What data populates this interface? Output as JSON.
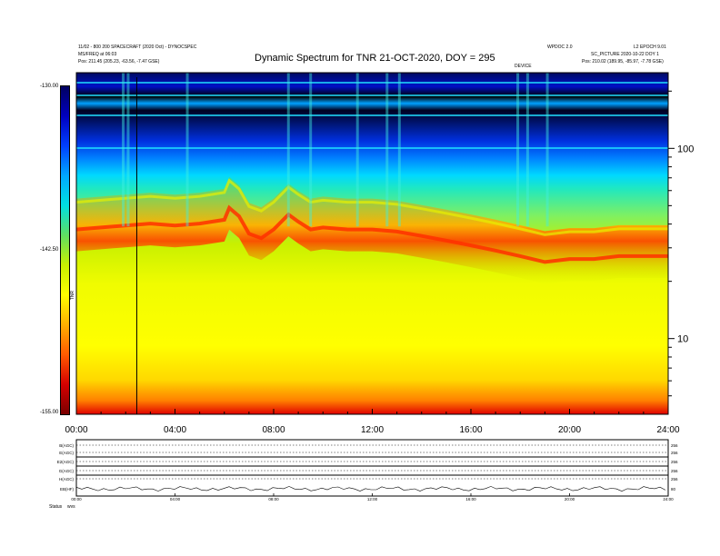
{
  "header": {
    "left_line1": "11/02 - 800 200 SPACECRAFT (2020 Oct) - DYNOCSPEC",
    "left_line2": "MS/FREQ at 06:03",
    "left_line3": "Pos:   211.45 (205.23, -63.56, -7.47 GSE)",
    "right_line1_a": "WPDOC 2.0",
    "right_line1_b": "L2 EPOCH 9.01",
    "right_line2": "SC_PICTURE  2020-10-22 DOY 1",
    "right_line3": "Pos:   210.02 (189.95, -85.97, -7.78 GSE)",
    "marker_label": "DEVICE",
    "title": "Dynamic Spectrum for TNR 21-OCT-2020, DOY = 295"
  },
  "colorbar": {
    "top_label": "-130.00",
    "mid_label": "-142.50",
    "bottom_label": "-155.00",
    "side_label": "TNR",
    "colors": [
      "#7a0000",
      "#d40000",
      "#ff5a00",
      "#ffb000",
      "#ffff00",
      "#c8f000",
      "#60e060",
      "#00e0e0",
      "#00a8ff",
      "#0040ff",
      "#0000c0",
      "#000060"
    ]
  },
  "chart_data": {
    "type": "heatmap",
    "title": "Dynamic Spectrum for TNR 21-OCT-2020, DOY = 295",
    "x_ticks": [
      "00:00",
      "04:00",
      "08:00",
      "12:00",
      "16:00",
      "20:00",
      "24:00"
    ],
    "x_range_hours": [
      0,
      24
    ],
    "y_scale": "log",
    "y_ticks": [
      10,
      100
    ],
    "y_range_khz": [
      4,
      250
    ],
    "color_range": [
      -155.0,
      -130.0
    ],
    "plasma_line": {
      "hours": [
        0,
        1,
        2,
        3,
        4,
        5,
        6,
        6.2,
        6.6,
        7,
        7.5,
        8,
        8.6,
        9,
        9.5,
        10,
        11,
        12,
        13,
        14,
        15,
        16,
        17,
        18,
        19,
        20,
        21,
        22,
        23,
        24
      ],
      "khz": [
        40,
        41,
        42,
        43,
        42,
        43,
        45,
        52,
        47,
        38,
        36,
        40,
        48,
        44,
        40,
        41,
        40,
        40,
        39,
        37,
        35,
        33,
        31,
        29,
        27,
        28,
        28,
        29,
        29,
        29
      ]
    },
    "vertical_marker_hour": 2.45
  },
  "lower_panel": {
    "rows": [
      "B(AGC)",
      "E(AGC)",
      "E2(AGC)",
      "G(AGC)",
      "H(AGC)",
      "EB(HF)"
    ],
    "right_values": [
      "256",
      "256",
      "256",
      "256",
      "256",
      "80"
    ],
    "x_ticks": [
      "00:00",
      "04:00",
      "08:00",
      "12:00",
      "16:00",
      "20:00",
      "24:00"
    ],
    "status_label": "Status",
    "status_value": "wvs"
  }
}
